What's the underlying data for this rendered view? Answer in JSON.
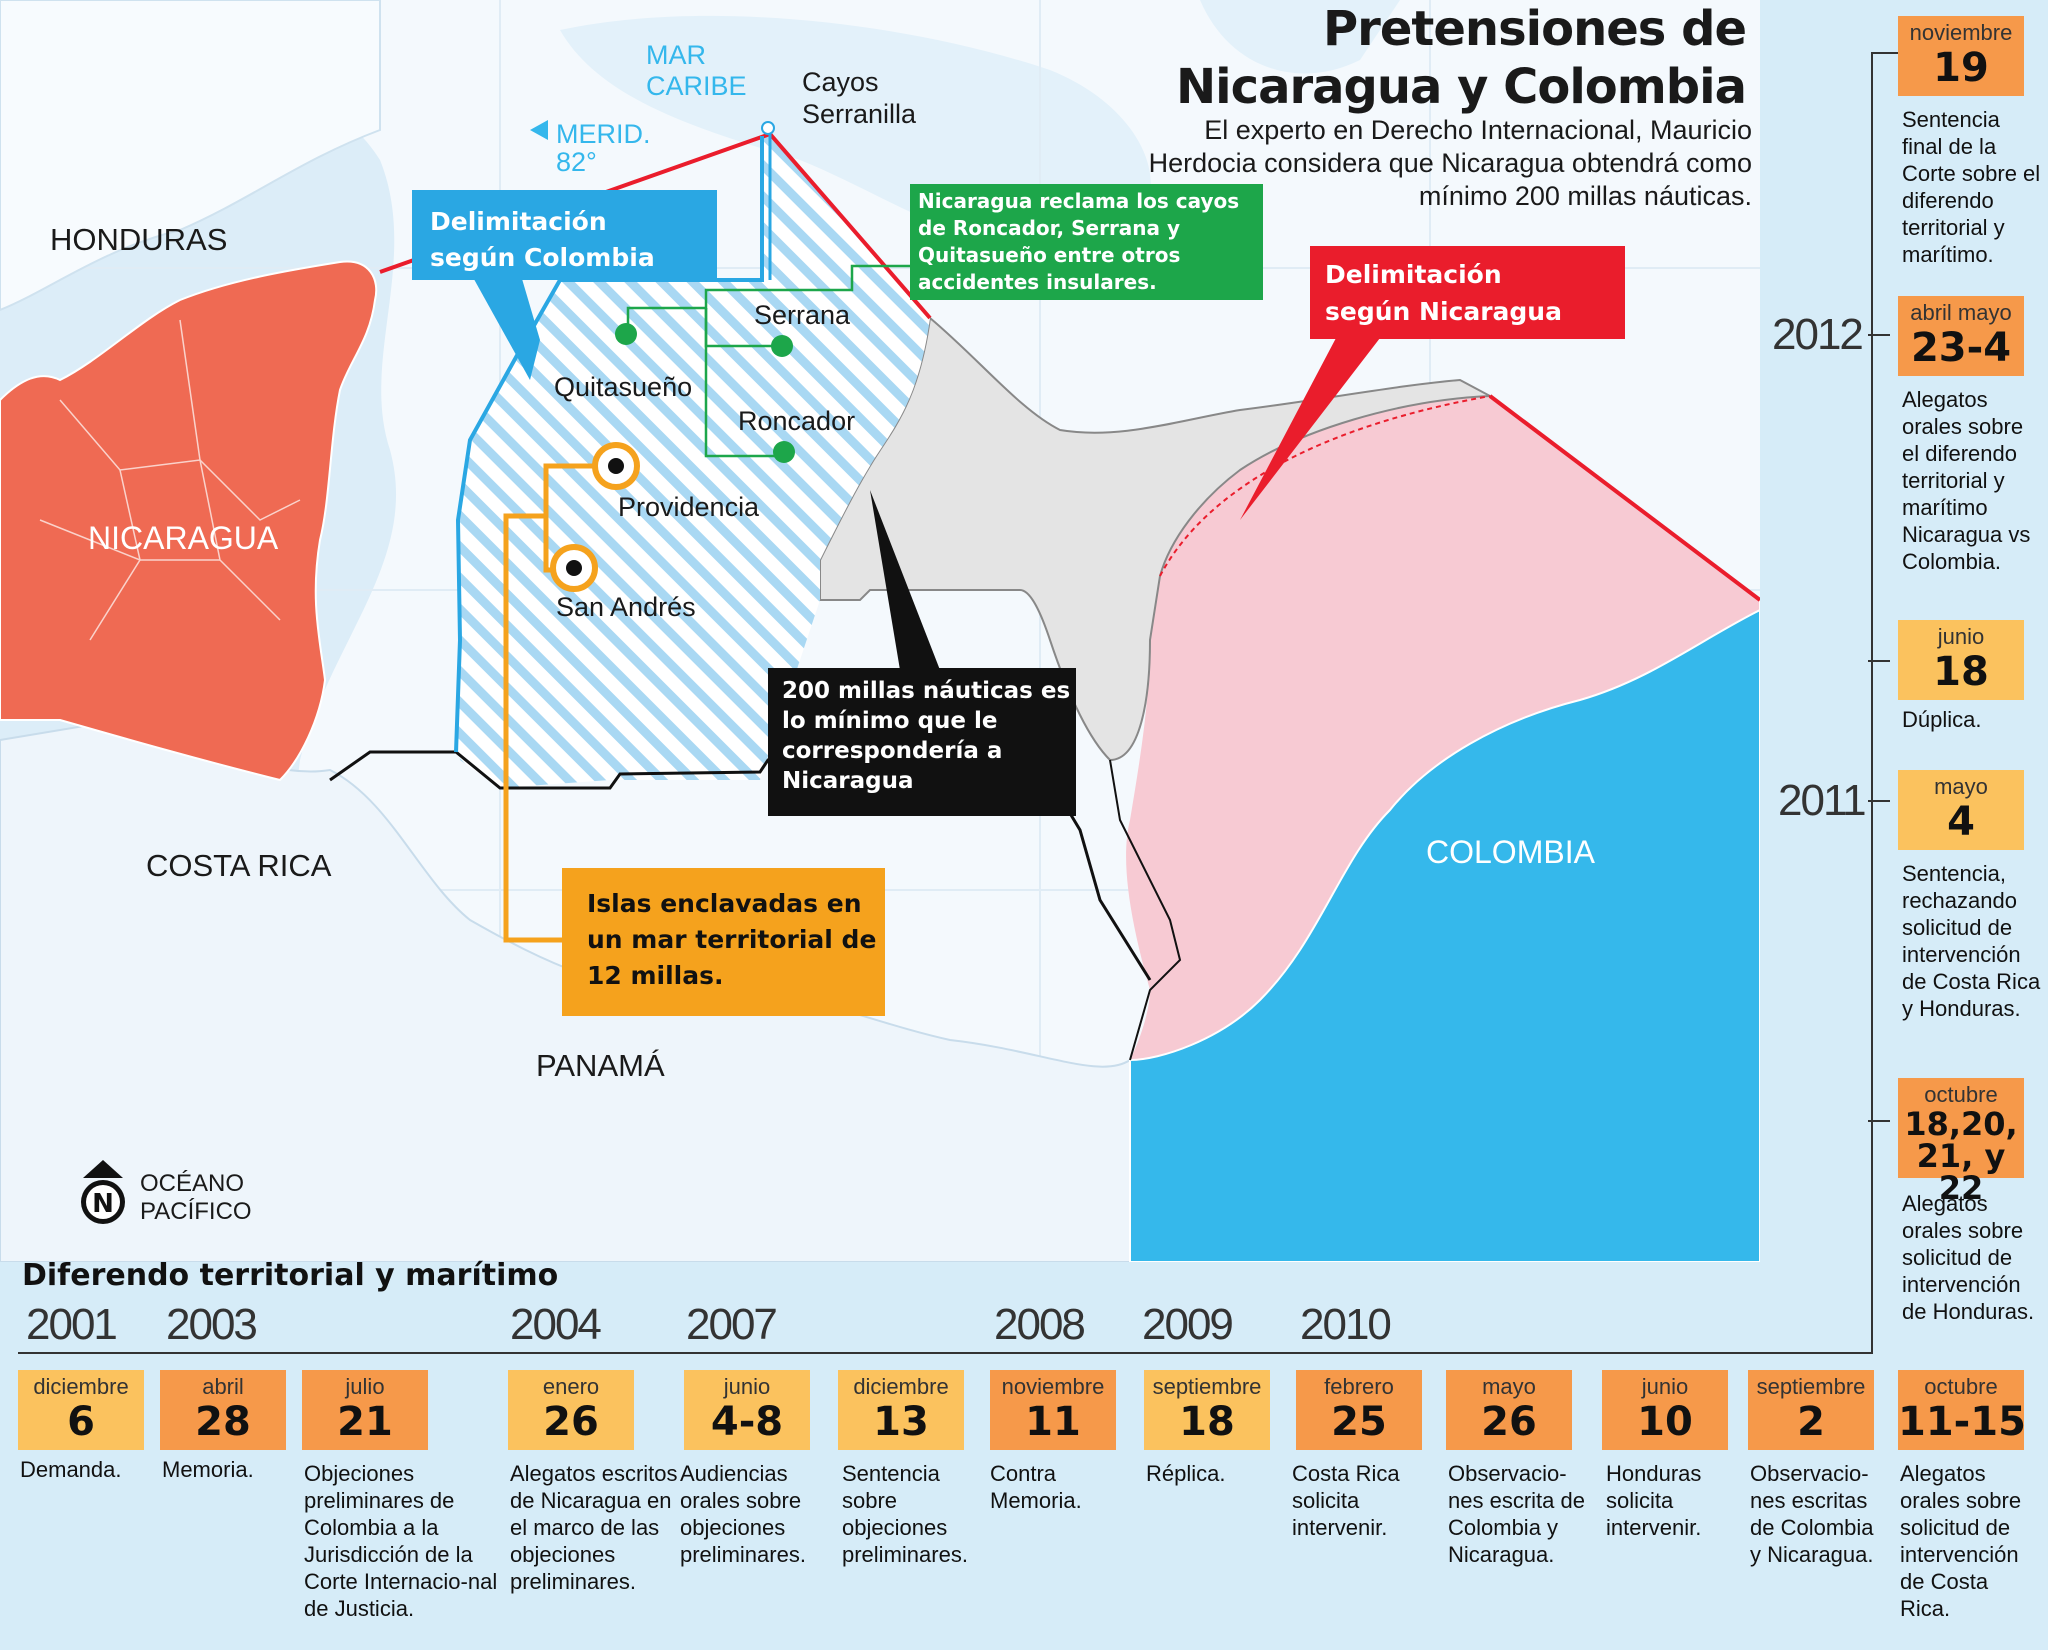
{
  "header": {
    "title_line1": "Pretensiones de",
    "title_line2": "Nicaragua y Colombia",
    "subtitle": "El experto en Derecho Internacional, Mauricio Herdocia considera que Nicaragua obtendrá como mínimo  200 millas náuticas."
  },
  "map": {
    "labels": {
      "mar_caribe_1": "MAR",
      "mar_caribe_2": "CARIBE",
      "meridiano_1": "MERID.",
      "meridiano_2": "82°",
      "cayos_1": "Cayos",
      "cayos_2": "Serranilla",
      "honduras": "HONDURAS",
      "nicaragua": "NICARAGUA",
      "costa_rica": "COSTA RICA",
      "panama": "PANAMÁ",
      "colombia": "COLOMBIA",
      "serrana": "Serrana",
      "quitasueno": "Quitasueño",
      "roncador": "Roncador",
      "providencia": "Providencia",
      "san_andres": "San Andrés",
      "oceano_1": "OCÉANO",
      "oceano_2": "PACÍFICO"
    },
    "callouts": {
      "colombia_line1": "Delimitación",
      "colombia_line2": "según Colombia",
      "cayos": "Nicaragua reclama los cayos de Roncador, Serrana y Quitasueño entre otros accidentes insulares.",
      "nicaragua_line1": "Delimitación",
      "nicaragua_line2": "según Nicaragua",
      "millas": "200 millas náuticas es lo mínimo que le correspondería a Nicaragua",
      "islas": "Islas enclavadas en un mar territorial de 12 millas."
    },
    "colors": {
      "nicaragua": "#ef6a53",
      "colombia_land": "#35b8eb",
      "colombia_claim": "#f7cad3",
      "nicaragua_claim_min": "#e4e4e4",
      "line_nicaragua": "#ea1d2c",
      "line_colombia": "#2aa7e3",
      "islands": "#f5a21d",
      "cays": "#1da64a"
    }
  },
  "timeline": {
    "title": "Diferendo territorial y marítimo",
    "years_bottom": [
      "2001",
      "2003",
      "2004",
      "2007",
      "2008",
      "2009",
      "2010"
    ],
    "years_side": [
      "2012",
      "2011"
    ],
    "bottom_events": [
      {
        "month": "diciembre",
        "day": "6",
        "desc": "Demanda."
      },
      {
        "month": "abril",
        "day": "28",
        "desc": "Memoria."
      },
      {
        "month": "julio",
        "day": "21",
        "desc": "Objeciones preliminares de Colombia a la Jurisdicción de la Corte Internacio-nal de Justicia."
      },
      {
        "month": "enero",
        "day": "26",
        "desc": "Alegatos escritos de Nicaragua en el marco de las objeciones preliminares."
      },
      {
        "month": "junio",
        "day": "4-8",
        "desc": "Audiencias orales sobre objeciones preliminares."
      },
      {
        "month": "diciembre",
        "day": "13",
        "desc": "Sentencia sobre objeciones preliminares."
      },
      {
        "month": "noviembre",
        "day": "11",
        "desc": "Contra Memoria."
      },
      {
        "month": "septiembre",
        "day": "18",
        "desc": "Réplica."
      },
      {
        "month": "febrero",
        "day": "25",
        "desc": "Costa Rica solicita intervenir."
      },
      {
        "month": "mayo",
        "day": "26",
        "desc": "Observacio-nes escrita de Colombia y Nicaragua."
      },
      {
        "month": "junio",
        "day": "10",
        "desc": "Honduras solicita intervenir."
      },
      {
        "month": "septiembre",
        "day": "2",
        "desc": "Observacio-nes escritas de Colombia y Nicaragua."
      },
      {
        "month": "octubre",
        "day": "11-15",
        "desc": "Alegatos orales sobre solicitud de intervención de Costa Rica."
      }
    ],
    "side_events": [
      {
        "month": "noviembre",
        "day": "19",
        "desc": "Sentencia final de la Corte sobre el diferendo territorial y marítimo."
      },
      {
        "month": "abril mayo",
        "day": "23-4",
        "desc": "Alegatos orales sobre el diferendo territorial y marítimo Nicaragua vs Colombia."
      },
      {
        "month": "junio",
        "day": "18",
        "desc": "Dúplica."
      },
      {
        "month": "mayo",
        "day": "4",
        "desc": "Sentencia, rechazando solicitud de intervención de Costa Rica y Honduras."
      },
      {
        "month": "octubre",
        "day": "18,20, 21, y 22",
        "desc": "Alegatos orales sobre solicitud de intervención de Honduras."
      }
    ]
  }
}
